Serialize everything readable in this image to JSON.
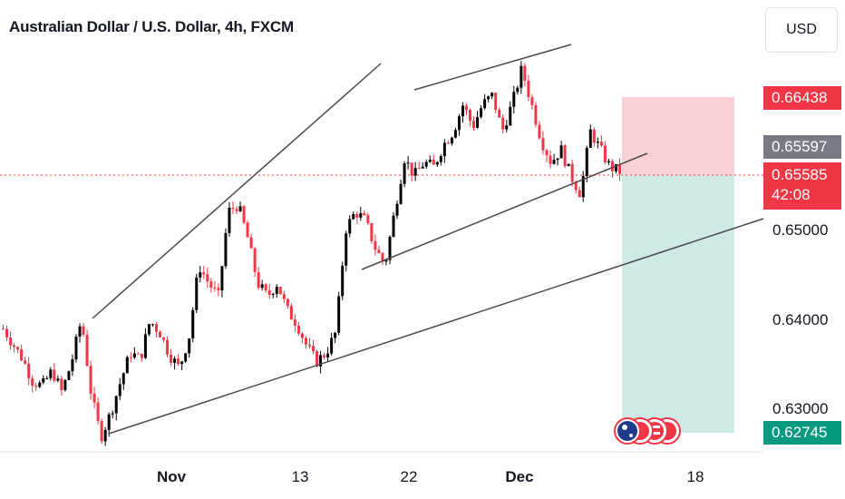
{
  "title": "Australian Dollar / U.S. Dollar, 4h, FXCM",
  "currency_button": "USD",
  "price_labels": {
    "target": "0.66438",
    "prev_close": "0.65597",
    "current": "0.65585",
    "countdown": "42:08",
    "stop": "0.62745"
  },
  "colors": {
    "up_candle": "#000000",
    "down_candle": "#f23645",
    "target_zone": "#f9d0d3",
    "stop_zone": "#cfeae4",
    "target_label": "#f23645",
    "stop_label": "#089981",
    "prev_close_label": "#787b86",
    "trendline": "#4a4a4a"
  },
  "chart_data": {
    "type": "candlestick",
    "title": "Australian Dollar / U.S. Dollar, 4h, FXCM",
    "y_ticks": [
      "0.65000",
      "0.64000",
      "0.63000"
    ],
    "y_tick_values": [
      0.65,
      0.64,
      0.63
    ],
    "ylim": [
      0.621,
      0.671
    ],
    "x_ticks": [
      {
        "label": "Nov",
        "bold": true
      },
      {
        "label": "13",
        "bold": false
      },
      {
        "label": "22",
        "bold": false
      },
      {
        "label": "Dec",
        "bold": true
      },
      {
        "label": "18",
        "bold": false
      }
    ],
    "close_path": [
      0.6389,
      0.6372,
      0.6355,
      0.633,
      0.6325,
      0.6342,
      0.6318,
      0.6352,
      0.64,
      0.6315,
      0.6268,
      0.6295,
      0.633,
      0.6362,
      0.6355,
      0.6398,
      0.6385,
      0.636,
      0.6345,
      0.638,
      0.646,
      0.644,
      0.6425,
      0.652,
      0.6528,
      0.649,
      0.644,
      0.6425,
      0.644,
      0.641,
      0.6395,
      0.637,
      0.6352,
      0.6362,
      0.6385,
      0.65,
      0.652,
      0.651,
      0.648,
      0.646,
      0.652,
      0.658,
      0.656,
      0.6575,
      0.657,
      0.6595,
      0.661,
      0.664,
      0.6615,
      0.664,
      0.665,
      0.661,
      0.664,
      0.668,
      0.664,
      0.66,
      0.6575,
      0.659,
      0.656,
      0.654,
      0.661,
      0.659,
      0.657,
      0.6565
    ],
    "zones": {
      "entry": 0.65585,
      "target": 0.66438,
      "stop": 0.62745
    },
    "trendlines": [
      {
        "from": [
          0.64,
          0.64
        ],
        "to": [
          0.671,
          0.671
        ],
        "note": "upper channel 1"
      },
      {
        "from": [
          0.668,
          0.668
        ],
        "to": [
          0.6685,
          0.6685
        ],
        "note": "upper channel 2"
      },
      {
        "from": [
          0.6454,
          0.6454
        ],
        "to": [
          0.6577,
          0.6577
        ],
        "note": "lower support"
      },
      {
        "from": [
          0.6268,
          0.6268
        ],
        "to": [
          0.651,
          0.651
        ],
        "note": "long support"
      }
    ]
  }
}
